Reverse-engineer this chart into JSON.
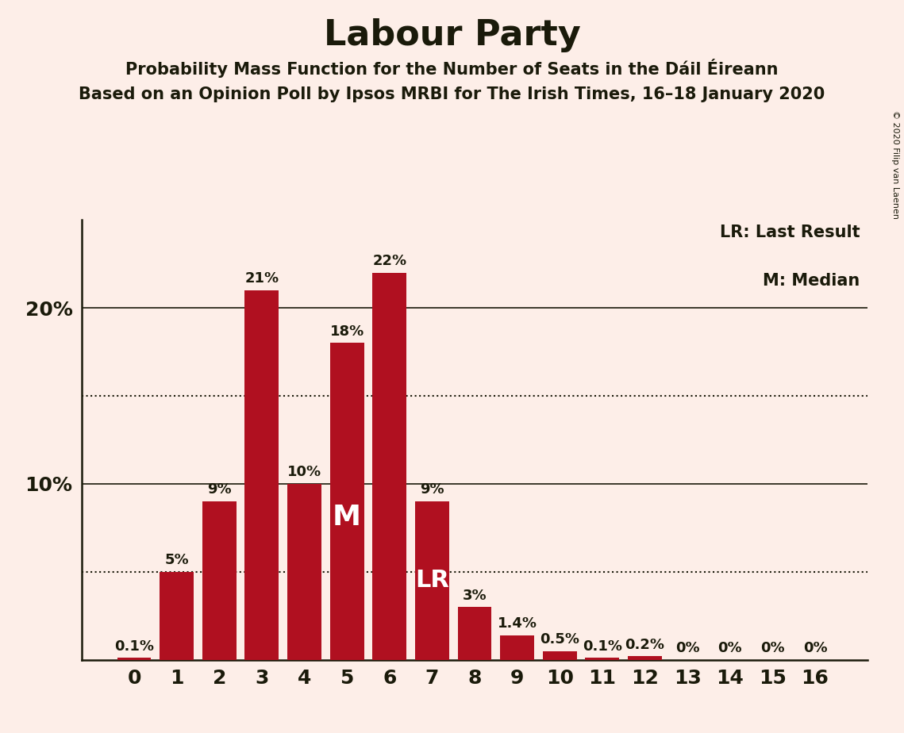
{
  "title": "Labour Party",
  "subtitle1": "Probability Mass Function for the Number of Seats in the Dáil Éireann",
  "subtitle2": "Based on an Opinion Poll by Ipsos MRBI for The Irish Times, 16–18 January 2020",
  "copyright": "© 2020 Filip van Laenen",
  "categories": [
    0,
    1,
    2,
    3,
    4,
    5,
    6,
    7,
    8,
    9,
    10,
    11,
    12,
    13,
    14,
    15,
    16
  ],
  "values": [
    0.1,
    5,
    9,
    21,
    10,
    18,
    22,
    9,
    3,
    1.4,
    0.5,
    0.1,
    0.2,
    0,
    0,
    0,
    0
  ],
  "bar_color": "#b01020",
  "background_color": "#fdeee8",
  "text_color": "#1a1a0a",
  "ylim": [
    0,
    25
  ],
  "dotted_lines": [
    5,
    15
  ],
  "median_bar": 5,
  "lr_bar": 7,
  "legend_lr": "LR: Last Result",
  "legend_m": "M: Median",
  "value_labels": [
    "0.1%",
    "5%",
    "9%",
    "21%",
    "10%",
    "18%",
    "22%",
    "9%",
    "3%",
    "1.4%",
    "0.5%",
    "0.1%",
    "0.2%",
    "0%",
    "0%",
    "0%",
    "0%"
  ],
  "bar_width": 0.8,
  "title_fontsize": 32,
  "subtitle_fontsize": 15,
  "tick_fontsize": 18,
  "label_fontsize": 13,
  "legend_fontsize": 15,
  "copyright_fontsize": 8
}
